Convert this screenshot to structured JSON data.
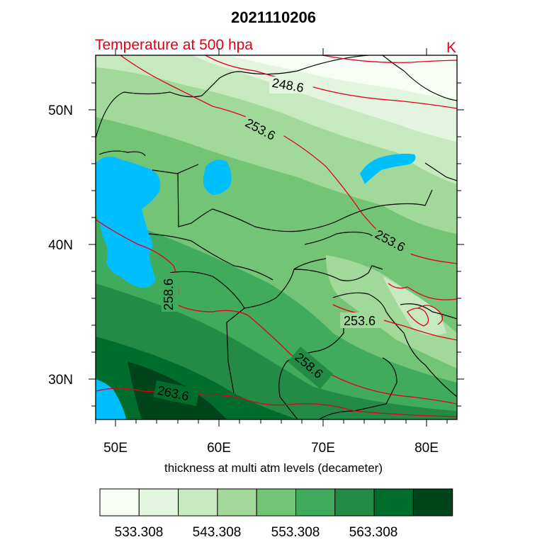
{
  "title": "2021110206",
  "left_title": "Temperature at 500 hpa",
  "right_title": "K",
  "x_axis_label": "thickness at multi atm levels (decameter)",
  "x_ticks": [
    "50E",
    "60E",
    "70E",
    "80E"
  ],
  "y_ticks": [
    "30N",
    "40N",
    "50N"
  ],
  "contour_labels": [
    "248.6",
    "253.6",
    "253.6",
    "253.6",
    "258.6",
    "258.6",
    "263.6"
  ],
  "colorbar": {
    "colors": [
      "#f7fcf5",
      "#e3f4df",
      "#c7e9c0",
      "#a1d99b",
      "#74c476",
      "#41ab5d",
      "#238b45",
      "#006d2c",
      "#00441b"
    ],
    "labels": [
      "533.308",
      "543.308",
      "553.308",
      "563.308"
    ]
  },
  "colors": {
    "contour_line": "#e0001a",
    "water": "#00bfff",
    "border": "#000000"
  }
}
